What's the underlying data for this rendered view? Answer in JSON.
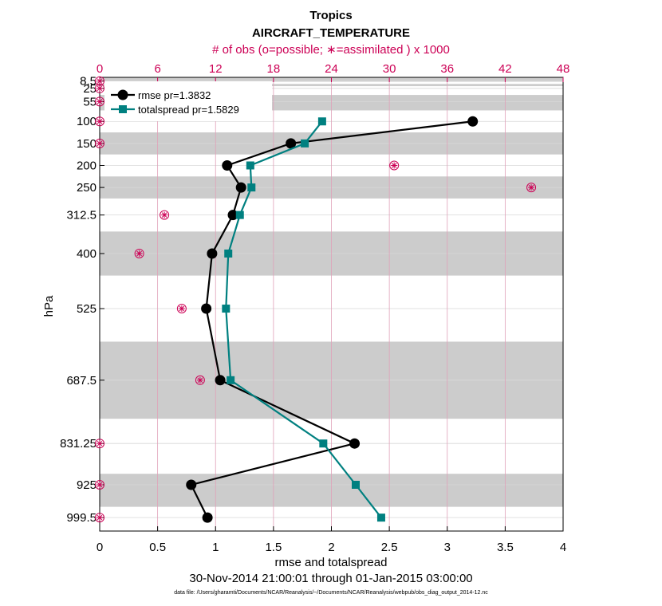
{
  "chart_data": {
    "type": "line",
    "title": "Tropics",
    "subtitle": "AIRCRAFT_TEMPERATURE",
    "xlabel": "rmse and totalspread",
    "ylabel": "hPa",
    "xlim": [
      0,
      4
    ],
    "x_ticks": [
      0,
      0.5,
      1,
      1.5,
      2,
      2.5,
      3,
      3.5,
      4
    ],
    "x2label": "# of obs (o=possible; ∗=assimilated ) x 1000",
    "x2lim": [
      0,
      48
    ],
    "x2_ticks": [
      0,
      6,
      12,
      18,
      24,
      30,
      36,
      42,
      48
    ],
    "ylim_hPa": [
      1030,
      0
    ],
    "levels": [
      8.5,
      25,
      55,
      100,
      150,
      200,
      250,
      312.5,
      400,
      525,
      687.5,
      831.25,
      925,
      999.5
    ],
    "level_labels": [
      "8.5",
      "25",
      "55",
      "100",
      "150",
      "200",
      "250",
      "312.5",
      "400",
      "525",
      "687.5",
      "831.25",
      "925",
      "999.5"
    ],
    "shaded_bands_hPa": [
      [
        0,
        10
      ],
      [
        15,
        20
      ],
      [
        40,
        75
      ],
      [
        125,
        175
      ],
      [
        225,
        275
      ],
      [
        350,
        450
      ],
      [
        600,
        775
      ],
      [
        900,
        975
      ]
    ],
    "series": [
      {
        "name": "rmse pr=1.3832",
        "color": "#000000",
        "marker": "circle",
        "values": [
          null,
          null,
          null,
          3.22,
          1.65,
          1.1,
          1.22,
          1.15,
          0.97,
          0.92,
          1.04,
          2.2,
          0.79,
          0.93
        ]
      },
      {
        "name": "totalspread pr=1.5829",
        "color": "#008080",
        "marker": "square",
        "values": [
          null,
          null,
          null,
          1.92,
          1.77,
          1.3,
          1.31,
          1.21,
          1.11,
          1.09,
          1.13,
          1.93,
          2.21,
          2.43
        ]
      }
    ],
    "obs_counts_thousands": {
      "possible": [
        0,
        0,
        0,
        0,
        0,
        30.5,
        44.7,
        6.7,
        4.1,
        8.5,
        10.4,
        0,
        0,
        0
      ],
      "assimilated": [
        0,
        0,
        0,
        0,
        0,
        30.5,
        44.7,
        6.7,
        4.1,
        8.5,
        10.4,
        0,
        0,
        0
      ],
      "color": "#cc0055"
    },
    "legend_position": "top-left",
    "time_range": "30-Nov-2014 21:00:01 through 01-Jan-2015 03:00:00",
    "footnote": "data file: /Users/gharamti/Documents/NCAR/Reanalysis/~/Documents/NCAR/Reanalysis/webpub/obs_diag_output_2014-12.nc"
  }
}
